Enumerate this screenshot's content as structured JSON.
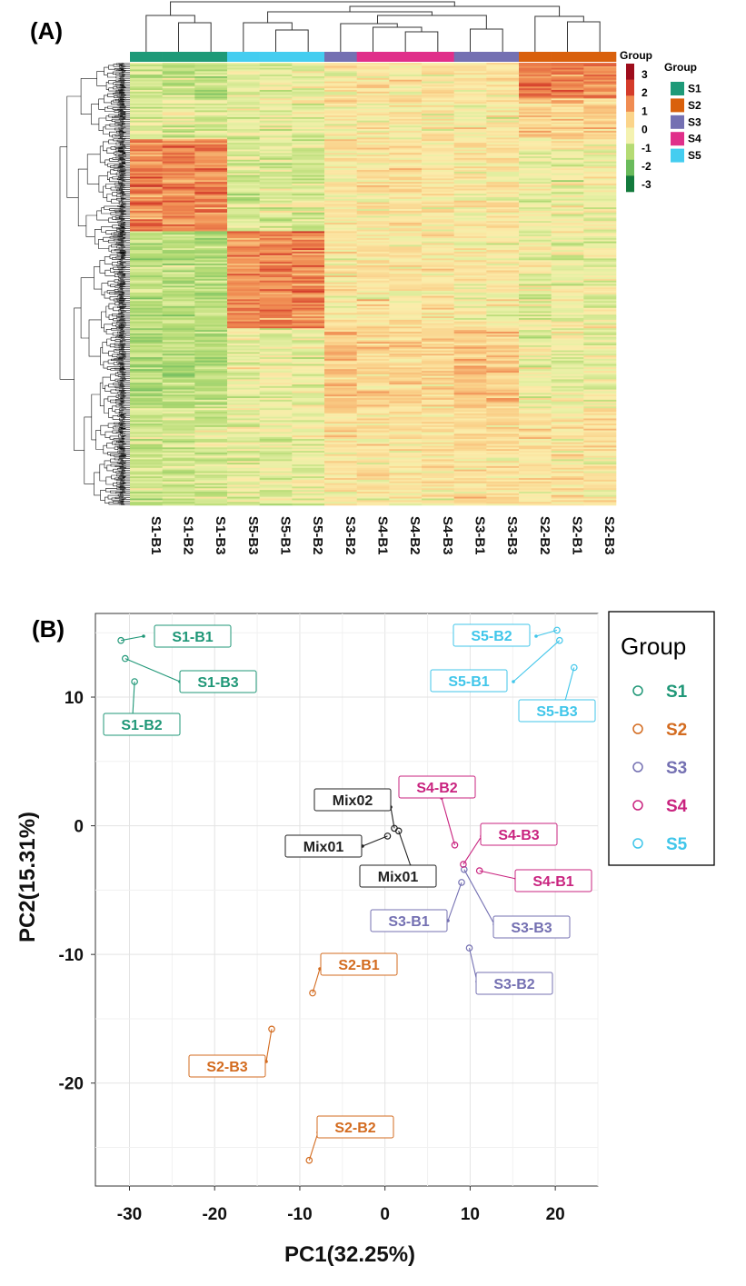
{
  "panel_a": {
    "label": "(A)",
    "colorbar": {
      "title": "Group",
      "ticks": [
        "3",
        "2",
        "1",
        "0",
        "-1",
        "-2",
        "-3"
      ],
      "colors": [
        "#9e0d1c",
        "#d43b2a",
        "#f08c52",
        "#fbd48a",
        "#f4f2b0",
        "#b5db74",
        "#6abb5c",
        "#137a3c"
      ]
    },
    "group_legend": {
      "title": "Group",
      "items": [
        {
          "label": "S1",
          "color": "#1e9a78"
        },
        {
          "label": "S2",
          "color": "#d9600c"
        },
        {
          "label": "S3",
          "color": "#7470b2"
        },
        {
          "label": "S4",
          "color": "#e02f8a"
        },
        {
          "label": "S5",
          "color": "#44cdf0"
        }
      ]
    }
  },
  "panel_b": {
    "label": "(B)",
    "xlabel": "PC1(32.25%)",
    "ylabel": "PC2(15.31%)",
    "legend": {
      "title": "Group",
      "items": [
        {
          "label": "S1",
          "color": "#1f9777"
        },
        {
          "label": "S2",
          "color": "#d36b1f"
        },
        {
          "label": "S3",
          "color": "#7470b2"
        },
        {
          "label": "S4",
          "color": "#c9237f"
        },
        {
          "label": "S5",
          "color": "#40c6ea"
        }
      ]
    }
  },
  "chart_data": [
    {
      "type": "heatmap",
      "title": "",
      "columns": [
        "S1-B1",
        "S1-B2",
        "S1-B3",
        "S5-B3",
        "S5-B1",
        "S5-B2",
        "S3-B2",
        "S4-B1",
        "S4-B2",
        "S4-B3",
        "S3-B1",
        "S3-B3",
        "S2-B2",
        "S2-B1",
        "S2-B3"
      ],
      "column_groups": [
        "S1",
        "S1",
        "S1",
        "S5",
        "S5",
        "S5",
        "S3",
        "S4",
        "S4",
        "S4",
        "S3",
        "S3",
        "S2",
        "S2",
        "S2"
      ],
      "value_range": [
        -3,
        3
      ],
      "legend_title": "Group",
      "row_dendrogram": true,
      "column_dendrogram": true
    },
    {
      "type": "scatter",
      "title": "",
      "xlabel": "PC1(32.25%)",
      "ylabel": "PC2(15.31%)",
      "xlim": [
        -34,
        25
      ],
      "ylim": [
        -28,
        16.5
      ],
      "xticks": [
        -30,
        -20,
        -10,
        0,
        10,
        20
      ],
      "yticks": [
        10,
        0,
        -10,
        -20
      ],
      "grid": true,
      "legend_position": "right",
      "series": [
        {
          "name": "S1",
          "color": "#1f9777",
          "points": [
            {
              "label": "S1-B1",
              "x": -31.0,
              "y": 14.4
            },
            {
              "label": "S1-B3",
              "x": -30.5,
              "y": 13.0
            },
            {
              "label": "S1-B2",
              "x": -29.4,
              "y": 11.2
            }
          ]
        },
        {
          "name": "S2",
          "color": "#d36b1f",
          "points": [
            {
              "label": "S2-B1",
              "x": -8.5,
              "y": -13.0
            },
            {
              "label": "S2-B3",
              "x": -13.3,
              "y": -15.8
            },
            {
              "label": "S2-B2",
              "x": -8.9,
              "y": -26.0
            }
          ]
        },
        {
          "name": "S3",
          "color": "#7470b2",
          "points": [
            {
              "label": "S3-B1",
              "x": 9.0,
              "y": -4.4
            },
            {
              "label": "S3-B3",
              "x": 9.3,
              "y": -3.4
            },
            {
              "label": "S3-B2",
              "x": 9.9,
              "y": -9.5
            }
          ]
        },
        {
          "name": "S4",
          "color": "#c9237f",
          "points": [
            {
              "label": "S4-B2",
              "x": 8.2,
              "y": -1.5
            },
            {
              "label": "S4-B3",
              "x": 9.2,
              "y": -3.0
            },
            {
              "label": "S4-B1",
              "x": 11.1,
              "y": -3.5
            }
          ]
        },
        {
          "name": "S5",
          "color": "#40c6ea",
          "points": [
            {
              "label": "S5-B2",
              "x": 20.2,
              "y": 15.2
            },
            {
              "label": "S5-B1",
              "x": 20.5,
              "y": 14.4
            },
            {
              "label": "S5-B3",
              "x": 22.2,
              "y": 12.3
            }
          ]
        },
        {
          "name": "",
          "color": "#222222",
          "points": [
            {
              "label": "Mix02",
              "x": 1.1,
              "y": -0.2
            },
            {
              "label": "Mix01",
              "x": 0.3,
              "y": -0.8
            },
            {
              "label": "Mix01",
              "x": 1.6,
              "y": -0.4
            }
          ]
        }
      ]
    }
  ]
}
